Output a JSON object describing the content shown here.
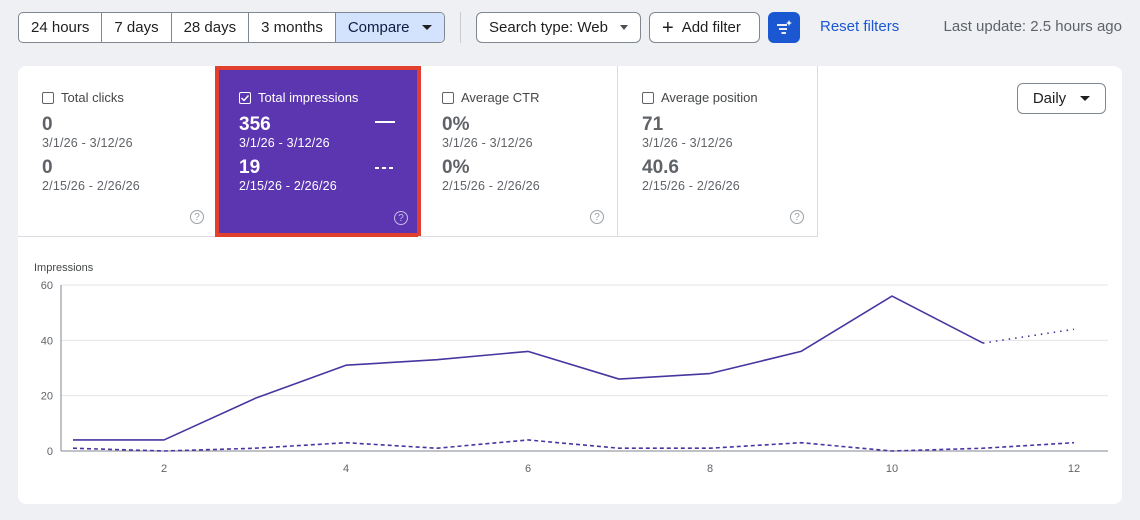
{
  "toolbar": {
    "ranges": [
      "24 hours",
      "7 days",
      "28 days",
      "3 months"
    ],
    "compare_label": "Compare",
    "search_type_label": "Search type: Web",
    "add_filter_label": "Add filter",
    "reset_label": "Reset filters",
    "last_update": "Last update: 2.5 hours ago"
  },
  "metrics": [
    {
      "label": "Total clicks",
      "current": "0",
      "current_range": "3/1/26 - 3/12/26",
      "previous": "0",
      "previous_range": "2/15/26 - 2/26/26",
      "checked": false
    },
    {
      "label": "Total impressions",
      "current": "356",
      "current_range": "3/1/26 - 3/12/26",
      "previous": "19",
      "previous_range": "2/15/26 - 2/26/26",
      "checked": true
    },
    {
      "label": "Average CTR",
      "current": "0%",
      "current_range": "3/1/26 - 3/12/26",
      "previous": "0%",
      "previous_range": "2/15/26 - 2/26/26",
      "checked": false
    },
    {
      "label": "Average position",
      "current": "71",
      "current_range": "3/1/26 - 3/12/26",
      "previous": "40.6",
      "previous_range": "2/15/26 - 2/26/26",
      "checked": false
    }
  ],
  "granularity": "Daily",
  "colors": {
    "accent": "#5b36b0",
    "highlight_border": "#e0402d",
    "link": "#1a57d1"
  },
  "chart_data": {
    "type": "line",
    "ylabel": "Impressions",
    "ylim": [
      0,
      60
    ],
    "yticks": [
      0,
      20,
      40,
      60
    ],
    "xlim": [
      1,
      12
    ],
    "xticks": [
      2,
      4,
      6,
      8,
      10,
      12
    ],
    "grid": true,
    "series": [
      {
        "style": "solid",
        "x": [
          1,
          2,
          3,
          4,
          5,
          6,
          7,
          8,
          9,
          10,
          11
        ],
        "values": [
          4,
          4,
          19,
          31,
          33,
          36,
          26,
          28,
          36,
          56,
          39
        ]
      },
      {
        "style": "dotted",
        "x": [
          11,
          12
        ],
        "values": [
          39,
          44
        ]
      },
      {
        "style": "dashed",
        "x": [
          1,
          2,
          3,
          4,
          5,
          6,
          7,
          8,
          9,
          10,
          11,
          12
        ],
        "values": [
          1,
          0,
          1,
          3,
          1,
          4,
          1,
          1,
          3,
          0,
          1,
          3
        ]
      }
    ]
  }
}
